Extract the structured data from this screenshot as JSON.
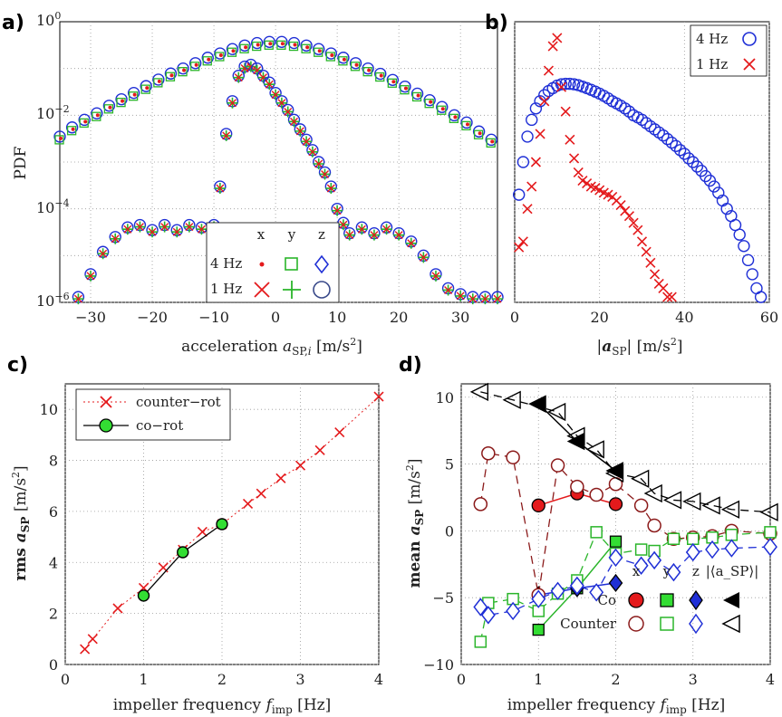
{
  "panels": {
    "a": {
      "label": "a)",
      "ylabel": "PDF",
      "xlabel": "acceleration a_SP,i [m/s²]",
      "legend": {
        "cols": [
          "x",
          "y",
          "z"
        ],
        "rows": [
          "4 Hz",
          "1 Hz"
        ]
      }
    },
    "b": {
      "label": "b)",
      "xlabel": "|a_SP| [m/s²]",
      "legend": [
        "4 Hz",
        "1 Hz"
      ]
    },
    "c": {
      "label": "c)",
      "ylabel": "rms a_SP [m/s²]",
      "xlabel": "impeller frequency f_imp [Hz]",
      "legend": [
        "counter−rot",
        "co−rot"
      ]
    },
    "d": {
      "label": "d)",
      "ylabel": "mean a_SP [m/s²]",
      "xlabel": "impeller frequency f_imp [Hz]",
      "legend": {
        "cols": [
          "x",
          "y",
          "z",
          "|⟨a_SP⟩|"
        ],
        "rows": [
          "Co",
          "Counter"
        ]
      }
    }
  },
  "colors": {
    "red": "#e41a1c",
    "green": "#2ab52a",
    "blue": "#1f2fd6",
    "darkred": "#8b1a1a",
    "black": "#000000"
  },
  "chart_data": [
    {
      "id": "a",
      "type": "scatter",
      "title": "",
      "xlabel": "acceleration a_SP,i [m/s²]",
      "ylabel": "PDF",
      "yscale": "log",
      "xlim": [
        -35,
        36
      ],
      "ylim": [
        1e-06,
        1
      ],
      "xticks": [
        -30,
        -20,
        -10,
        0,
        10,
        20,
        30
      ],
      "series": [
        {
          "name": "4 Hz",
          "marker": "circle",
          "color": "blue",
          "x": [
            -35,
            -33,
            -31,
            -29,
            -27,
            -25,
            -23,
            -21,
            -19,
            -17,
            -15,
            -13,
            -11,
            -9,
            -7,
            -5,
            -3,
            -1,
            1,
            3,
            5,
            7,
            9,
            11,
            13,
            15,
            17,
            19,
            21,
            23,
            25,
            27,
            29,
            31,
            33,
            35
          ],
          "y": [
            0.0035,
            0.0055,
            0.008,
            0.011,
            0.016,
            0.022,
            0.03,
            0.042,
            0.058,
            0.078,
            0.1,
            0.13,
            0.17,
            0.21,
            0.26,
            0.31,
            0.35,
            0.37,
            0.37,
            0.35,
            0.31,
            0.26,
            0.21,
            0.17,
            0.13,
            0.1,
            0.077,
            0.057,
            0.041,
            0.029,
            0.021,
            0.015,
            0.01,
            0.007,
            0.0045,
            0.003
          ]
        },
        {
          "name": "1 Hz",
          "marker": "circle",
          "color": "blue",
          "x": [
            -32,
            -30,
            -28,
            -26,
            -24,
            -22,
            -20,
            -18,
            -16,
            -14,
            -12,
            -10,
            -9,
            -8,
            -7,
            -6,
            -5,
            -4,
            -3,
            -2,
            -1,
            0,
            1,
            2,
            3,
            4,
            5,
            6,
            7,
            8,
            9,
            10,
            11,
            12,
            14,
            16,
            18,
            20,
            22,
            24,
            26,
            28,
            30,
            32,
            34,
            36
          ],
          "y": [
            1.3e-06,
            4e-06,
            1.2e-05,
            2.5e-05,
            4e-05,
            4.5e-05,
            3.5e-05,
            4.5e-05,
            3.5e-05,
            4.5e-05,
            4e-05,
            4.5e-05,
            0.0003,
            0.004,
            0.02,
            0.07,
            0.11,
            0.12,
            0.1,
            0.07,
            0.05,
            0.03,
            0.02,
            0.013,
            0.008,
            0.005,
            0.003,
            0.0018,
            0.001,
            0.0006,
            0.0003,
            0.0001,
            5e-05,
            3e-05,
            4e-05,
            3e-05,
            4e-05,
            3e-05,
            2e-05,
            1e-05,
            4e-06,
            2e-06,
            1.5e-06,
            1.3e-06,
            1.3e-06,
            1.3e-06
          ]
        }
      ]
    },
    {
      "id": "b",
      "type": "scatter",
      "xlabel": "|a_SP| [m/s²]",
      "yscale": "log",
      "xlim": [
        0,
        60
      ],
      "ylim": [
        1e-06,
        1
      ],
      "xticks": [
        0,
        20,
        40,
        60
      ],
      "series": [
        {
          "name": "4 Hz",
          "marker": "circle",
          "color": "blue",
          "x": [
            1,
            2,
            3,
            4,
            5,
            6,
            7,
            8,
            9,
            10,
            11,
            12,
            13,
            14,
            15,
            16,
            17,
            18,
            19,
            20,
            21,
            22,
            23,
            24,
            25,
            26,
            27,
            28,
            29,
            30,
            31,
            32,
            33,
            34,
            35,
            36,
            37,
            38,
            39,
            40,
            41,
            42,
            43,
            44,
            45,
            46,
            47,
            48,
            49,
            50,
            51,
            52,
            53,
            54,
            55,
            56,
            57,
            58
          ],
          "y": [
            0.0002,
            0.001,
            0.0035,
            0.008,
            0.014,
            0.02,
            0.027,
            0.033,
            0.038,
            0.043,
            0.046,
            0.047,
            0.047,
            0.046,
            0.044,
            0.041,
            0.038,
            0.035,
            0.032,
            0.029,
            0.026,
            0.023,
            0.02,
            0.018,
            0.016,
            0.014,
            0.012,
            0.01,
            0.009,
            0.008,
            0.0068,
            0.0058,
            0.005,
            0.0043,
            0.0037,
            0.0031,
            0.0026,
            0.0022,
            0.0018,
            0.0015,
            0.0012,
            0.001,
            0.0008,
            0.00065,
            0.0005,
            0.0004,
            0.0003,
            0.00022,
            0.00015,
            0.0001,
            7e-05,
            4.5e-05,
            2.8e-05,
            1.6e-05,
            8e-06,
            4e-06,
            2e-06,
            1.3e-06
          ]
        },
        {
          "name": "1 Hz",
          "marker": "x",
          "color": "red",
          "x": [
            1,
            2,
            3,
            4,
            5,
            6,
            7,
            8,
            9,
            10,
            11,
            12,
            13,
            14,
            15,
            16,
            17,
            18,
            19,
            20,
            21,
            22,
            23,
            24,
            25,
            26,
            27,
            28,
            29,
            30,
            31,
            32,
            33,
            34,
            35,
            36,
            37
          ],
          "y": [
            1.5e-05,
            2e-05,
            0.0001,
            0.0003,
            0.001,
            0.004,
            0.02,
            0.09,
            0.3,
            0.45,
            0.04,
            0.012,
            0.003,
            0.0012,
            0.0006,
            0.0004,
            0.00035,
            0.0003,
            0.00028,
            0.00025,
            0.00022,
            0.0002,
            0.00018,
            0.00015,
            0.00012,
            9e-05,
            7e-05,
            5e-05,
            3.5e-05,
            2e-05,
            1.2e-05,
            7e-06,
            4e-06,
            2.5e-06,
            2e-06,
            1.3e-06,
            1.3e-06
          ]
        }
      ]
    },
    {
      "id": "c",
      "type": "line",
      "xlabel": "impeller frequency f_imp [Hz]",
      "ylabel": "rms a_SP [m/s²]",
      "xlim": [
        0,
        4
      ],
      "ylim": [
        0,
        11
      ],
      "xticks": [
        0,
        1,
        2,
        3,
        4
      ],
      "yticks": [
        0,
        2,
        4,
        6,
        8,
        10
      ],
      "series": [
        {
          "name": "counter−rot",
          "color": "red",
          "marker": "x",
          "x": [
            0.25,
            0.35,
            0.67,
            1,
            1.25,
            1.5,
            1.75,
            2,
            2.33,
            2.5,
            2.75,
            3,
            3.25,
            3.5,
            4
          ],
          "y": [
            0.6,
            1.0,
            2.2,
            3.0,
            3.8,
            4.5,
            5.2,
            5.5,
            6.3,
            6.7,
            7.3,
            7.8,
            8.4,
            9.1,
            10.5
          ]
        },
        {
          "name": "co−rot",
          "color": "green",
          "marker": "circle",
          "x": [
            1,
            1.5,
            2
          ],
          "y": [
            2.7,
            4.4,
            5.5
          ]
        }
      ]
    },
    {
      "id": "d",
      "type": "line",
      "xlabel": "impeller frequency f_imp [Hz]",
      "ylabel": "mean a_SP [m/s²]",
      "xlim": [
        0,
        4
      ],
      "ylim": [
        -10,
        11
      ],
      "xticks": [
        0,
        1,
        2,
        3,
        4
      ],
      "yticks": [
        -10,
        -5,
        0,
        5,
        10
      ],
      "series": [
        {
          "name": "Co x",
          "color": "red",
          "marker": "circle-filled",
          "x": [
            1,
            1.5,
            2
          ],
          "y": [
            1.9,
            2.8,
            2.0
          ]
        },
        {
          "name": "Co y",
          "color": "green",
          "marker": "square-filled",
          "x": [
            1,
            1.5,
            2
          ],
          "y": [
            -7.4,
            -4.3,
            -0.8
          ]
        },
        {
          "name": "Co z",
          "color": "blue",
          "marker": "diamond-filled",
          "x": [
            1,
            1.5,
            2
          ],
          "y": [
            -4.8,
            -4.3,
            -3.9
          ]
        },
        {
          "name": "Co |<a_SP>|",
          "color": "black",
          "marker": "tri-filled",
          "x": [
            1,
            1.5,
            2
          ],
          "y": [
            9.5,
            6.7,
            4.5
          ]
        },
        {
          "name": "Counter x",
          "color": "darkred",
          "marker": "circle-open",
          "x": [
            0.25,
            0.35,
            0.67,
            1,
            1.25,
            1.5,
            1.75,
            2,
            2.33,
            2.5,
            2.75,
            3,
            3.25,
            3.5,
            4
          ],
          "y": [
            2.0,
            5.8,
            5.5,
            -4.8,
            4.9,
            3.3,
            2.7,
            3.5,
            1.9,
            0.4,
            -0.6,
            -0.5,
            -0.4,
            0.0,
            -0.2
          ]
        },
        {
          "name": "Counter y",
          "color": "green",
          "marker": "square-open",
          "x": [
            0.25,
            0.35,
            0.67,
            1,
            1.25,
            1.5,
            1.75,
            2,
            2.33,
            2.5,
            2.75,
            3,
            3.25,
            3.5,
            4
          ],
          "y": [
            -8.3,
            -5.4,
            -5.1,
            -6.0,
            -4.7,
            -3.7,
            -0.1,
            -1.7,
            -1.4,
            -1.5,
            -0.6,
            -0.6,
            -0.5,
            -0.3,
            -0.1
          ]
        },
        {
          "name": "Counter z",
          "color": "blue",
          "marker": "diamond-open",
          "x": [
            0.25,
            0.35,
            0.67,
            1,
            1.25,
            1.5,
            1.75,
            2,
            2.33,
            2.5,
            2.75,
            3,
            3.25,
            3.5,
            4
          ],
          "y": [
            -5.7,
            -6.3,
            -6.0,
            -5.1,
            -4.5,
            -4.1,
            -4.6,
            -2.0,
            -2.6,
            -2.2,
            -3.1,
            -1.6,
            -1.4,
            -1.3,
            -1.2
          ]
        },
        {
          "name": "Counter |<a_SP>|",
          "color": "black",
          "marker": "tri-open",
          "x": [
            0.25,
            0.67,
            1.25,
            1.5,
            1.75,
            2,
            2.33,
            2.5,
            2.75,
            3,
            3.25,
            3.5,
            4
          ],
          "y": [
            10.4,
            9.8,
            8.9,
            7.1,
            6.1,
            4.3,
            3.9,
            2.8,
            2.3,
            2.2,
            1.9,
            1.6,
            1.4
          ]
        }
      ]
    }
  ]
}
